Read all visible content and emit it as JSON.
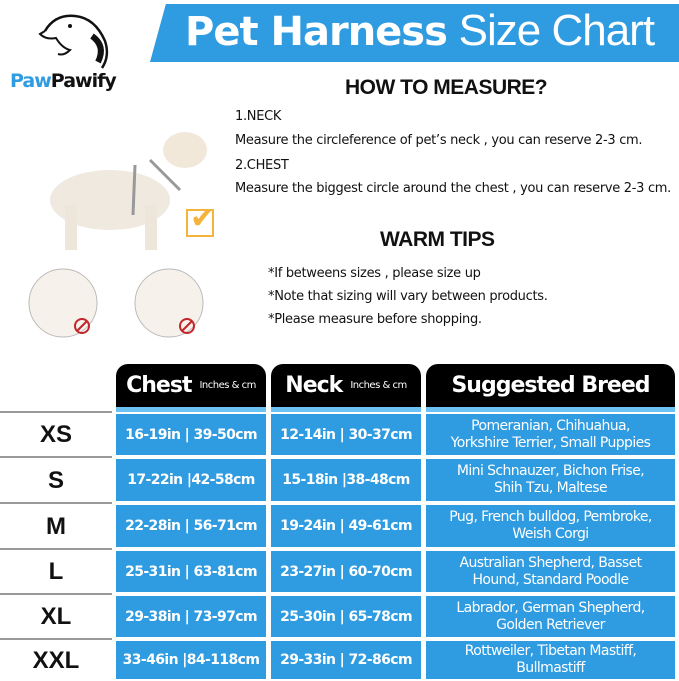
{
  "brand": {
    "logo_part1": "Paw",
    "logo_part2": "Pawify"
  },
  "header": {
    "title_bold": "Pet Harness",
    "title_light": "Size Chart",
    "accent": "#2f9be0"
  },
  "measure": {
    "heading": "HOW TO MEASURE?",
    "neck_label": "1.NECK",
    "neck_text": "Measure the circleference of pet’s neck , you can reserve 2-3 cm.",
    "chest_label": "2.CHEST",
    "chest_text": "Measure the biggest circle around the chest , you can reserve 2-3 cm."
  },
  "tips": {
    "heading": "WARM TIPS",
    "items": [
      "*If betweens sizes , please size up",
      "*Note that sizing will vary between products.",
      "*Please measure before shopping."
    ]
  },
  "table": {
    "headers": {
      "chest": "Chest",
      "chest_unit": "Inches & cm",
      "neck": "Neck",
      "neck_unit": "Inches & cm",
      "breed": "Suggested Breed"
    },
    "rows": [
      {
        "size": "XS",
        "chest": "16-19in | 39-50cm",
        "neck": "12-14in | 30-37cm",
        "breed": "Pomeranian, Chihuahua, Yorkshire Terrier, Small Puppies"
      },
      {
        "size": "S",
        "chest": "17-22in |42-58cm",
        "neck": "15-18in |38-48cm",
        "breed": "Mini Schnauzer, Bichon Frise, Shih Tzu, Maltese"
      },
      {
        "size": "M",
        "chest": "22-28in | 56-71cm",
        "neck": "19-24in | 49-61cm",
        "breed": "Pug, French bulldog, Pembroke, Weish Corgi"
      },
      {
        "size": "L",
        "chest": "25-31in | 63-81cm",
        "neck": "23-27in | 60-70cm",
        "breed": "Australian Shepherd, Basset Hound, Standard Poodle"
      },
      {
        "size": "XL",
        "chest": "29-38in | 73-97cm",
        "neck": "25-30in | 65-78cm",
        "breed": "Labrador, German Shepherd, Golden Retriever"
      },
      {
        "size": "XXL",
        "chest": "33-46in |84-118cm",
        "neck": "29-33in | 72-86cm",
        "breed": "Rottweiler, Tibetan Mastiff, Bullmastiff"
      }
    ]
  }
}
